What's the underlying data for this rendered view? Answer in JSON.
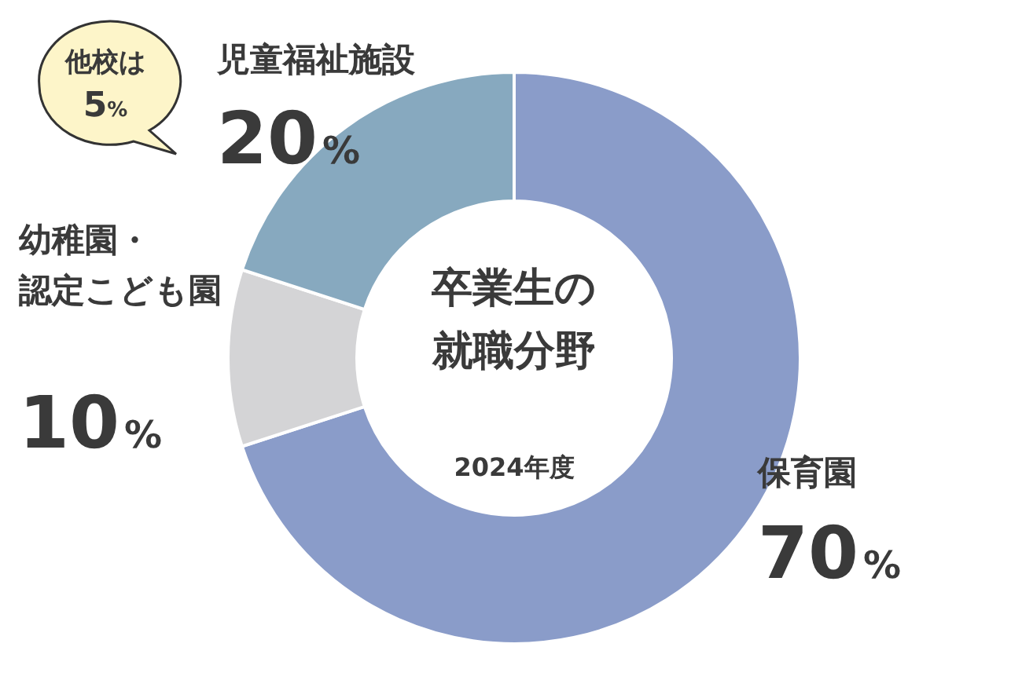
{
  "chart_data": {
    "type": "donut",
    "title": "卒業生の就職分野",
    "subtitle": "2024年度",
    "categories": [
      "保育園",
      "幼稚園・認定こども園",
      "児童福祉施設"
    ],
    "values": [
      70,
      10,
      20
    ],
    "colors": [
      "#8a9cc9",
      "#d4d4d6",
      "#87a9bf"
    ],
    "value_labels": [
      "70%",
      "10%",
      "20%"
    ],
    "annotations": [
      "他校は5%"
    ]
  }
}
